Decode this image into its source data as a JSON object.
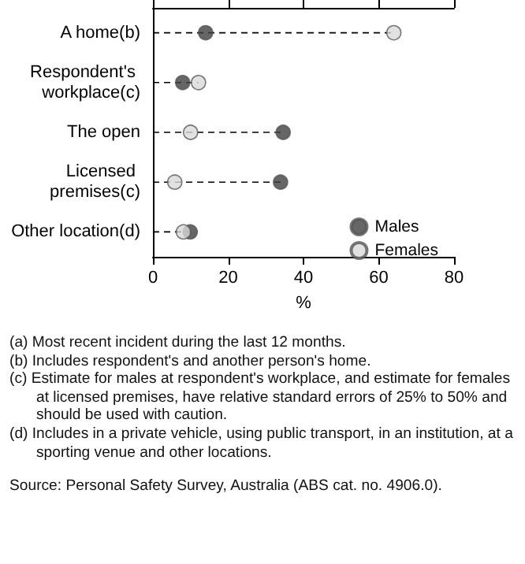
{
  "chart_data": {
    "type": "lollipop",
    "orientation": "horizontal",
    "xlabel": "%",
    "categories": [
      "A home(b)",
      "Respondent's workplace(c)",
      "The open",
      "Licensed premises(c)",
      "Other location(d)"
    ],
    "series": [
      {
        "name": "Males",
        "color": "#404040",
        "values": [
          14.0,
          7.9,
          34.6,
          33.9,
          9.9
        ]
      },
      {
        "name": "Females",
        "color": "#d9d9d9",
        "values": [
          64.0,
          12.1,
          10.0,
          5.8,
          8.1
        ]
      }
    ],
    "xlim": [
      0,
      80
    ],
    "xticks": [
      0,
      20,
      40,
      60,
      80
    ],
    "grid": false,
    "legend": "bottom right",
    "marker": "circle",
    "line_style": "dashed",
    "annotations": [
      "(a) Most recent incident during the last 12 months.",
      "(b) Includes respondent's and another person's home.",
      "(c) Estimate for males at respondent's workplace, and estimate for females at licensed premises, have relative standard errors of 25% to 50% and should be used with caution.",
      "(d) Includes in a private vehicle, using public transport, in an institution, at a sporting venue and other locations.",
      "Source: Personal Safety Survey, Australia (ABS cat. no. 4906.0)."
    ]
  }
}
